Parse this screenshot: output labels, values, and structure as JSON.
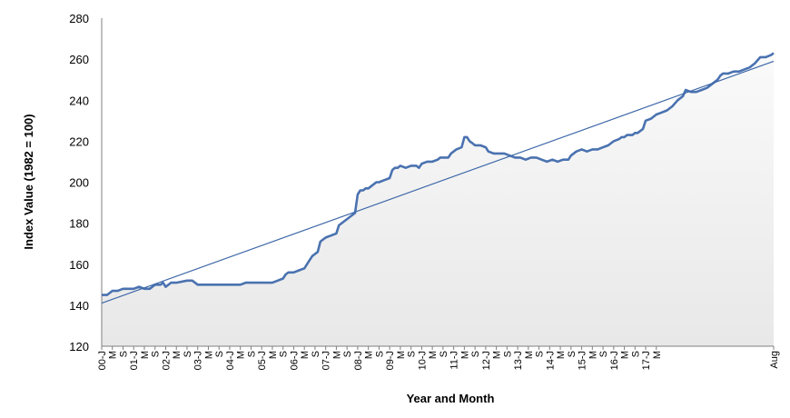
{
  "chart_data": {
    "type": "line",
    "xlabel": "Year and Month",
    "ylabel": "Index Value (1982 = 100)",
    "ylim": [
      120,
      280
    ],
    "yticks": [
      120,
      140,
      160,
      180,
      200,
      220,
      240,
      260,
      280
    ],
    "grid": false,
    "legend": "none",
    "x_tick_labels": [
      "00-J",
      "M",
      "S",
      "01-J",
      "M",
      "S",
      "02-J",
      "M",
      "S",
      "03-J",
      "M",
      "S",
      "04-J",
      "M",
      "S",
      "05-J",
      "M",
      "S",
      "06-J",
      "M",
      "S",
      "07-J",
      "M",
      "S",
      "08-J",
      "M",
      "S",
      "09-J",
      "M",
      "S",
      "10-J",
      "M",
      "S",
      "11-J",
      "M",
      "S",
      "12-J",
      "M",
      "S",
      "13-J",
      "M",
      "S",
      "14-J",
      "M",
      "S",
      "15-J",
      "M",
      "S",
      "16-J",
      "M",
      "S",
      "17-J",
      "M",
      "Aug"
    ],
    "x_months": 212,
    "series": [
      {
        "points": [
          [
            0,
            145
          ],
          [
            2,
            145
          ],
          [
            4,
            147
          ],
          [
            6,
            147
          ],
          [
            8,
            148
          ],
          [
            10,
            148
          ],
          [
            12,
            148
          ],
          [
            14,
            149
          ],
          [
            16,
            148
          ],
          [
            18,
            148
          ],
          [
            20,
            150
          ],
          [
            22,
            150
          ],
          [
            23,
            151
          ],
          [
            24,
            149
          ],
          [
            26,
            151
          ],
          [
            28,
            151
          ],
          [
            32,
            152
          ],
          [
            34,
            152
          ],
          [
            36,
            150
          ],
          [
            38,
            150
          ],
          [
            42,
            150
          ],
          [
            45,
            150
          ],
          [
            48,
            150
          ],
          [
            52,
            150
          ],
          [
            54,
            151
          ],
          [
            58,
            151
          ],
          [
            62,
            151
          ],
          [
            64,
            151
          ],
          [
            66,
            152
          ],
          [
            68,
            153
          ],
          [
            69,
            155
          ],
          [
            70,
            156
          ],
          [
            72,
            156
          ],
          [
            74,
            157
          ],
          [
            76,
            158
          ],
          [
            78,
            162
          ],
          [
            79,
            164
          ],
          [
            80,
            165
          ],
          [
            81,
            166
          ],
          [
            82,
            171
          ],
          [
            84,
            173
          ],
          [
            86,
            174
          ],
          [
            88,
            175
          ],
          [
            89,
            179
          ],
          [
            90,
            180
          ],
          [
            91,
            181
          ],
          [
            92,
            182
          ],
          [
            93,
            183
          ],
          [
            94,
            184
          ],
          [
            95,
            185
          ],
          [
            96,
            194
          ],
          [
            97,
            196
          ],
          [
            98,
            196
          ],
          [
            99,
            197
          ],
          [
            100,
            197
          ],
          [
            102,
            199
          ],
          [
            103,
            200
          ],
          [
            104,
            200
          ],
          [
            106,
            201
          ],
          [
            108,
            202
          ],
          [
            109,
            206
          ],
          [
            110,
            207
          ],
          [
            111,
            207
          ],
          [
            112,
            208
          ],
          [
            114,
            207
          ],
          [
            116,
            208
          ],
          [
            118,
            208
          ],
          [
            119,
            207
          ],
          [
            120,
            209
          ],
          [
            122,
            210
          ],
          [
            124,
            210
          ],
          [
            126,
            211
          ],
          [
            127,
            212
          ],
          [
            128,
            212
          ],
          [
            130,
            212
          ],
          [
            131,
            214
          ],
          [
            132,
            215
          ],
          [
            133,
            216
          ],
          [
            135,
            217
          ],
          [
            136,
            222
          ],
          [
            137,
            222
          ],
          [
            138,
            220
          ],
          [
            139,
            219
          ],
          [
            140,
            218
          ],
          [
            142,
            218
          ],
          [
            144,
            217
          ],
          [
            145,
            215
          ],
          [
            147,
            214
          ],
          [
            149,
            214
          ],
          [
            151,
            214
          ],
          [
            153,
            213
          ],
          [
            155,
            212
          ],
          [
            157,
            212
          ],
          [
            159,
            211
          ],
          [
            161,
            212
          ],
          [
            163,
            212
          ],
          [
            165,
            211
          ],
          [
            167,
            210
          ],
          [
            169,
            211
          ],
          [
            171,
            210
          ],
          [
            173,
            211
          ],
          [
            175,
            211
          ],
          [
            176,
            213
          ],
          [
            178,
            215
          ],
          [
            180,
            216
          ],
          [
            182,
            215
          ],
          [
            184,
            216
          ],
          [
            186,
            216
          ],
          [
            188,
            217
          ],
          [
            190,
            218
          ],
          [
            192,
            220
          ],
          [
            194,
            221
          ],
          [
            195,
            222
          ],
          [
            196,
            222
          ],
          [
            197,
            223
          ],
          [
            199,
            223
          ],
          [
            200,
            224
          ],
          [
            201,
            224
          ],
          [
            202,
            225
          ],
          [
            203,
            226
          ],
          [
            204,
            230
          ],
          [
            206,
            231
          ],
          [
            208,
            233
          ],
          [
            210,
            234
          ],
          [
            212,
            235
          ],
          [
            214,
            237
          ],
          [
            216,
            240
          ],
          [
            218,
            242
          ],
          [
            219,
            245
          ],
          [
            221,
            244
          ],
          [
            223,
            244
          ],
          [
            225,
            245
          ],
          [
            227,
            246
          ],
          [
            229,
            248
          ],
          [
            231,
            250
          ],
          [
            232,
            252
          ],
          [
            233,
            253
          ],
          [
            235,
            253
          ],
          [
            237,
            254
          ],
          [
            239,
            254
          ],
          [
            241,
            255
          ],
          [
            243,
            256
          ],
          [
            245,
            258
          ],
          [
            247,
            261
          ],
          [
            249,
            261
          ],
          [
            251,
            262
          ],
          [
            252,
            263
          ]
        ],
        "trend": [
          141,
          259
        ]
      }
    ]
  }
}
